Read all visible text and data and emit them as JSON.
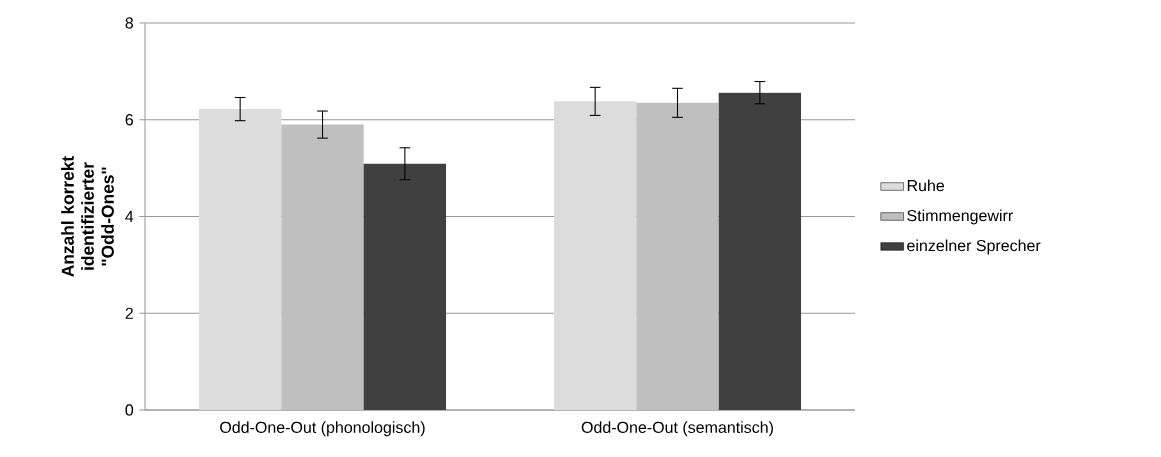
{
  "chart_data": {
    "type": "bar",
    "ylabel": "Anzahl korrekt identifizierter \"Odd-Ones\"",
    "categories": [
      "Odd-One-Out (phonologisch)",
      "Odd-One-Out (semantisch)"
    ],
    "series": [
      {
        "name": "Ruhe",
        "color": "#dcdcdc",
        "values": [
          6.22,
          6.38
        ],
        "errors": [
          0.24,
          0.29
        ]
      },
      {
        "name": "Stimmengewirr",
        "color": "#bfbfbf",
        "values": [
          5.9,
          6.35
        ],
        "errors": [
          0.28,
          0.3
        ]
      },
      {
        "name": "einzelner Sprecher",
        "color": "#404040",
        "values": [
          5.09,
          6.56
        ],
        "errors": [
          0.33,
          0.23
        ]
      }
    ],
    "ylim": [
      0,
      8
    ],
    "yticks": [
      0,
      2,
      4,
      6,
      8
    ],
    "grid": "y",
    "legend": "right"
  }
}
